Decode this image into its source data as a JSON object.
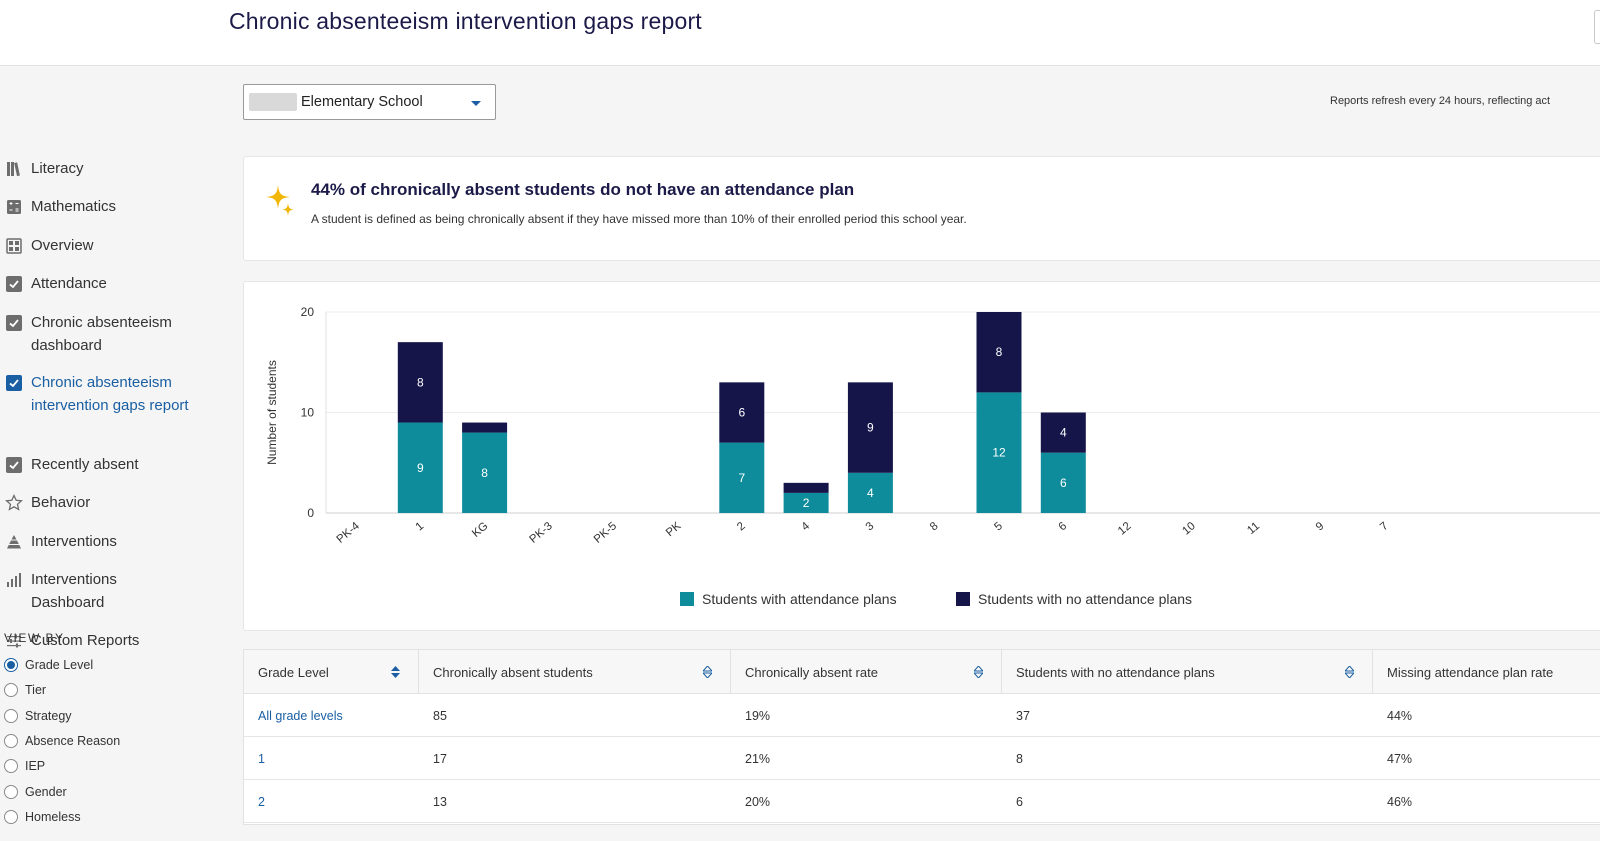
{
  "header": {
    "title": "Chronic absenteeism intervention gaps report"
  },
  "sidebar": {
    "items": [
      {
        "label": "Literacy",
        "icon": "book-icon"
      },
      {
        "label": "Mathematics",
        "icon": "calculator-icon"
      },
      {
        "label": "Overview",
        "icon": "grid-icon"
      },
      {
        "label": "Attendance",
        "icon": "checkbox-icon"
      },
      {
        "label": "Chronic absenteeism dashboard",
        "icon": "checkbox-icon"
      },
      {
        "label": "Chronic absenteeism intervention gaps report",
        "icon": "checkbox-icon",
        "active": true
      },
      {
        "label": "Recently absent",
        "icon": "checkbox-icon"
      },
      {
        "label": "Behavior",
        "icon": "star-icon"
      },
      {
        "label": "Interventions",
        "icon": "pyramid-icon"
      },
      {
        "label": "Interventions Dashboard",
        "icon": "bar-chart-icon"
      },
      {
        "label": "Custom Reports",
        "icon": "sliders-icon"
      }
    ],
    "view_by": {
      "title": "VIEW BY",
      "options": [
        "Grade Level",
        "Tier",
        "Strategy",
        "Absence Reason",
        "IEP",
        "Gender",
        "Homeless"
      ],
      "selected": "Grade Level"
    }
  },
  "school_select": {
    "value": "Elementary School"
  },
  "refresh_note": "Reports refresh every 24 hours, reflecting act",
  "insight": {
    "title": "44% of chronically absent students do not have an attendance plan",
    "subtitle": "A student is defined as being chronically absent if they have missed more than 10% of their enrolled period this school year."
  },
  "chart_data": {
    "type": "bar",
    "stacked": true,
    "categories": [
      "PK-4",
      "1",
      "KG",
      "PK-3",
      "PK-5",
      "PK",
      "2",
      "4",
      "3",
      "8",
      "5",
      "6",
      "12",
      "10",
      "11",
      "9",
      "7"
    ],
    "series": [
      {
        "name": "Students with attendance plans",
        "color": "#0e8c9c",
        "values": [
          0,
          9,
          8,
          0,
          0,
          0,
          7,
          2,
          4,
          0,
          12,
          6,
          0,
          0,
          0,
          0,
          0
        ]
      },
      {
        "name": "Students with no attendance plans",
        "color": "#15154a",
        "values": [
          0,
          8,
          1,
          0,
          0,
          0,
          6,
          1,
          9,
          0,
          8,
          4,
          0,
          0,
          0,
          0,
          0
        ]
      }
    ],
    "ylabel": "Number of students",
    "ylim": [
      0,
      20
    ],
    "yticks": [
      0,
      10,
      20
    ],
    "legend_position": "bottom",
    "grid": true
  },
  "table": {
    "columns": [
      "Grade Level",
      "Chronically absent students",
      "Chronically absent rate",
      "Students with no attendance plans",
      "Missing attendance plan rate"
    ],
    "rows": [
      [
        "All grade levels",
        "85",
        "19%",
        "37",
        "44%"
      ],
      [
        "1",
        "17",
        "21%",
        "8",
        "47%"
      ],
      [
        "2",
        "13",
        "20%",
        "6",
        "46%"
      ]
    ]
  },
  "colors": {
    "accent": "#1a5fa3",
    "teal": "#0e8c9c",
    "navy": "#15154a",
    "spark": "#f2b705"
  }
}
